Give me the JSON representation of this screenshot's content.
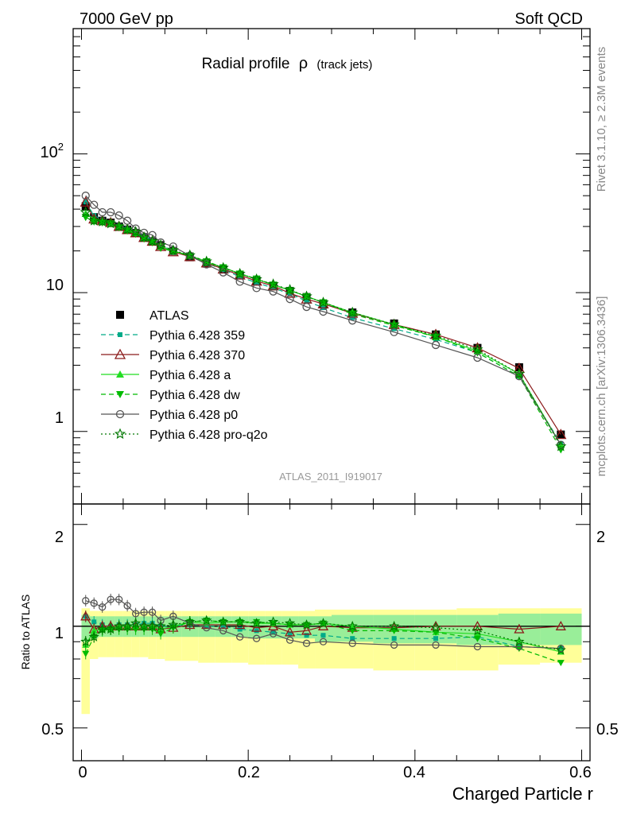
{
  "header": {
    "left": "7000 GeV pp",
    "right": "Soft QCD"
  },
  "side_labels": {
    "top": "Rivet 3.1.10, ≥ 2.3M events",
    "bottom": "mcplots.cern.ch [arXiv:1306.3436]"
  },
  "chart_data": [
    {
      "type": "line",
      "title": "Radial profile",
      "title_symbol": "ρ",
      "title_suffix": "(track jets)",
      "annotation": "ATLAS_2011_I919017",
      "xlabel": "Charged Particle r",
      "ylabel": "",
      "yscale": "log",
      "xlim": [
        -0.01,
        0.61
      ],
      "ylim": [
        0.3,
        800
      ],
      "x_ticks": [
        "0",
        "0.2",
        "0.4",
        "0.6"
      ],
      "y_ticks": [
        "1",
        "10",
        "10^2"
      ],
      "legend_placement": "middle-left",
      "x": [
        0.005,
        0.015,
        0.025,
        0.035,
        0.045,
        0.055,
        0.065,
        0.075,
        0.085,
        0.095,
        0.11,
        0.13,
        0.15,
        0.17,
        0.19,
        0.21,
        0.23,
        0.25,
        0.27,
        0.29,
        0.325,
        0.375,
        0.425,
        0.475,
        0.525,
        0.575
      ],
      "series": [
        {
          "name": "ATLAS",
          "color": "#000000",
          "marker": "square",
          "dash": "none",
          "values": [
            42,
            35,
            33,
            32,
            30,
            28.5,
            27,
            25,
            23.5,
            22,
            20,
            18,
            16.2,
            14.7,
            13.3,
            12.2,
            11.2,
            10.3,
            9.3,
            8.3,
            7.2,
            6,
            5,
            4,
            2.9,
            0.95
          ],
          "errors": [
            4,
            2.5,
            2,
            1.8,
            1.5,
            1.3,
            1.2,
            1,
            1,
            0.9,
            0.8,
            0.7,
            0.6,
            0.5,
            0.5,
            0.4,
            0.4,
            0.4,
            0.3,
            0.3,
            0.3,
            0.25,
            0.2,
            0.2,
            0.15,
            0.05
          ]
        },
        {
          "name": "Pythia 6.428 359",
          "color": "#00aa88",
          "marker": "small-square",
          "dash": "dashed",
          "values": [
            45,
            36,
            33.5,
            32,
            30.5,
            29,
            27.5,
            25.5,
            24,
            22,
            20,
            18.2,
            16.3,
            14.7,
            13,
            11.8,
            10.8,
            9.8,
            8.7,
            7.8,
            6.6,
            5.5,
            4.6,
            3.7,
            2.5,
            0.82
          ]
        },
        {
          "name": "Pythia 6.428 370",
          "color": "#8b1a1a",
          "marker": "open-triangle",
          "dash": "none",
          "values": [
            45,
            34,
            33,
            32,
            30,
            28.5,
            27,
            25,
            23.5,
            21.5,
            19.7,
            18.2,
            16.4,
            14.8,
            13.4,
            12.1,
            11.2,
            9.9,
            9,
            8.3,
            7.1,
            5.9,
            5,
            4,
            2.85,
            0.95
          ]
        },
        {
          "name": "Pythia 6.428 a",
          "color": "#22dd22",
          "marker": "triangle",
          "dash": "none",
          "values": [
            37,
            34,
            32.5,
            31.5,
            30,
            28.5,
            27,
            25,
            23.5,
            21.5,
            20,
            18.5,
            16.5,
            15.2,
            13.7,
            12.5,
            11.4,
            10.4,
            9.4,
            8.5,
            7.2,
            5.9,
            4.8,
            3.8,
            2.6,
            0.8
          ]
        },
        {
          "name": "Pythia 6.428 dw",
          "color": "#00bb00",
          "marker": "inverted-triangle",
          "dash": "dashed",
          "values": [
            35,
            32.5,
            32,
            31.5,
            29.5,
            28,
            26.5,
            24.5,
            23,
            21,
            19.8,
            18.5,
            16.8,
            15.2,
            13.7,
            12.6,
            11.4,
            10.4,
            9.4,
            8.5,
            7,
            5.8,
            4.8,
            3.7,
            2.5,
            0.74
          ]
        },
        {
          "name": "Pythia 6.428 p0",
          "color": "#555555",
          "marker": "open-circle",
          "dash": "none",
          "values": [
            50,
            43,
            38,
            38,
            36,
            33,
            29,
            27,
            26,
            23,
            21.5,
            18.5,
            16,
            14,
            12,
            10.8,
            10.2,
            9,
            7.9,
            7.3,
            6.3,
            5.2,
            4.2,
            3.4,
            2.5,
            0.8
          ]
        },
        {
          "name": "Pythia 6.428 pro-q2o",
          "color": "#007700",
          "marker": "open-star",
          "dash": "dotted",
          "values": [
            38,
            33,
            32.5,
            31.5,
            30,
            28.5,
            27.5,
            25,
            23.5,
            22,
            20.2,
            18.6,
            16.8,
            15.1,
            13.7,
            12.5,
            11.5,
            10.5,
            9.4,
            8.5,
            7.2,
            5.9,
            4.9,
            3.9,
            2.6,
            0.78
          ]
        }
      ]
    },
    {
      "type": "line",
      "title": "",
      "xlabel": "Charged Particle r",
      "ylabel": "Ratio to ATLAS",
      "yscale": "log",
      "xlim": [
        -0.01,
        0.61
      ],
      "ylim": [
        0.4,
        2.3
      ],
      "y_ticks": [
        "0.5",
        "1",
        "2"
      ],
      "x": [
        0.005,
        0.015,
        0.025,
        0.035,
        0.045,
        0.055,
        0.065,
        0.075,
        0.085,
        0.095,
        0.11,
        0.13,
        0.15,
        0.17,
        0.19,
        0.21,
        0.23,
        0.25,
        0.27,
        0.29,
        0.325,
        0.375,
        0.425,
        0.475,
        0.525,
        0.575
      ],
      "bin_edges": [
        0,
        0.01,
        0.02,
        0.03,
        0.04,
        0.05,
        0.06,
        0.07,
        0.08,
        0.09,
        0.1,
        0.12,
        0.14,
        0.16,
        0.18,
        0.2,
        0.22,
        0.24,
        0.26,
        0.28,
        0.3,
        0.35,
        0.4,
        0.45,
        0.5,
        0.55,
        0.6
      ],
      "band_stat": {
        "color": "#99ee99",
        "low": [
          0.9,
          0.92,
          0.93,
          0.93,
          0.93,
          0.93,
          0.93,
          0.93,
          0.93,
          0.93,
          0.93,
          0.93,
          0.93,
          0.93,
          0.93,
          0.92,
          0.92,
          0.92,
          0.92,
          0.9,
          0.9,
          0.89,
          0.89,
          0.88,
          0.88,
          0.88
        ],
        "high": [
          1.08,
          1.07,
          1.07,
          1.07,
          1.07,
          1.07,
          1.07,
          1.07,
          1.07,
          1.07,
          1.07,
          1.07,
          1.07,
          1.07,
          1.07,
          1.07,
          1.07,
          1.07,
          1.07,
          1.07,
          1.08,
          1.08,
          1.08,
          1.08,
          1.09,
          1.09
        ]
      },
      "band_total": {
        "color": "#ffff99",
        "low": [
          0.55,
          0.8,
          0.81,
          0.81,
          0.81,
          0.81,
          0.81,
          0.81,
          0.8,
          0.8,
          0.79,
          0.79,
          0.78,
          0.78,
          0.78,
          0.77,
          0.77,
          0.77,
          0.75,
          0.75,
          0.75,
          0.74,
          0.74,
          0.74,
          0.77,
          0.78
        ],
        "high": [
          1.13,
          1.11,
          1.11,
          1.11,
          1.11,
          1.11,
          1.11,
          1.11,
          1.11,
          1.11,
          1.11,
          1.11,
          1.11,
          1.11,
          1.11,
          1.11,
          1.11,
          1.11,
          1.11,
          1.12,
          1.12,
          1.12,
          1.12,
          1.13,
          1.13,
          1.13
        ]
      },
      "series": [
        {
          "name": "Pythia 6.428 359",
          "color": "#00aa88",
          "marker": "small-square",
          "dash": "dashed",
          "values": [
            1.07,
            1.03,
            1.01,
            1,
            1.01,
            1.01,
            1.01,
            1.02,
            1.02,
            1,
            1,
            1.01,
            1,
            1,
            0.98,
            0.97,
            0.96,
            0.95,
            0.94,
            0.94,
            0.92,
            0.92,
            0.92,
            0.93,
            0.87,
            0.86
          ]
        },
        {
          "name": "Pythia 6.428 370",
          "color": "#8b1a1a",
          "marker": "open-triangle",
          "dash": "none",
          "values": [
            1.07,
            0.98,
            1,
            1,
            1,
            1,
            1,
            1,
            1,
            0.98,
            0.99,
            1.01,
            1.01,
            1.01,
            1.01,
            0.99,
            1,
            0.96,
            0.97,
            1,
            0.99,
            0.99,
            1,
            1,
            0.98,
            1
          ]
        },
        {
          "name": "Pythia 6.428 a",
          "color": "#22dd22",
          "marker": "triangle",
          "dash": "none",
          "values": [
            0.88,
            0.97,
            0.98,
            0.98,
            1,
            1,
            1,
            1,
            1,
            0.98,
            1,
            1.03,
            1.02,
            1.03,
            1.03,
            1.02,
            1.02,
            1.01,
            1.01,
            1.02,
            1,
            0.98,
            0.96,
            0.95,
            0.9,
            0.84
          ]
        },
        {
          "name": "Pythia 6.428 dw",
          "color": "#00bb00",
          "marker": "inverted-triangle",
          "dash": "dashed",
          "values": [
            0.83,
            0.93,
            0.97,
            0.98,
            0.98,
            0.98,
            0.98,
            0.98,
            0.98,
            0.95,
            0.99,
            1.03,
            1.04,
            1.03,
            1.03,
            1.03,
            1.02,
            1.01,
            1.01,
            1.02,
            0.97,
            0.97,
            0.96,
            0.92,
            0.86,
            0.78
          ]
        },
        {
          "name": "Pythia 6.428 p0",
          "color": "#555555",
          "marker": "open-circle",
          "dash": "none",
          "values": [
            1.19,
            1.17,
            1.14,
            1.2,
            1.2,
            1.15,
            1.09,
            1.1,
            1.1,
            1.04,
            1.07,
            1.02,
            0.99,
            0.97,
            0.93,
            0.92,
            0.95,
            0.91,
            0.89,
            0.9,
            0.89,
            0.88,
            0.88,
            0.87,
            0.87,
            0.86
          ]
        },
        {
          "name": "Pythia 6.428 pro-q2o",
          "color": "#007700",
          "marker": "open-star",
          "dash": "dotted",
          "values": [
            0.9,
            0.93,
            0.98,
            0.98,
            1,
            1,
            1.02,
            1,
            1,
            1,
            1.01,
            1.03,
            1.04,
            1.03,
            1.03,
            1.02,
            1.03,
            1.02,
            1.01,
            1.02,
            1,
            1,
            0.99,
            0.97,
            0.9,
            0.85
          ]
        }
      ]
    }
  ]
}
